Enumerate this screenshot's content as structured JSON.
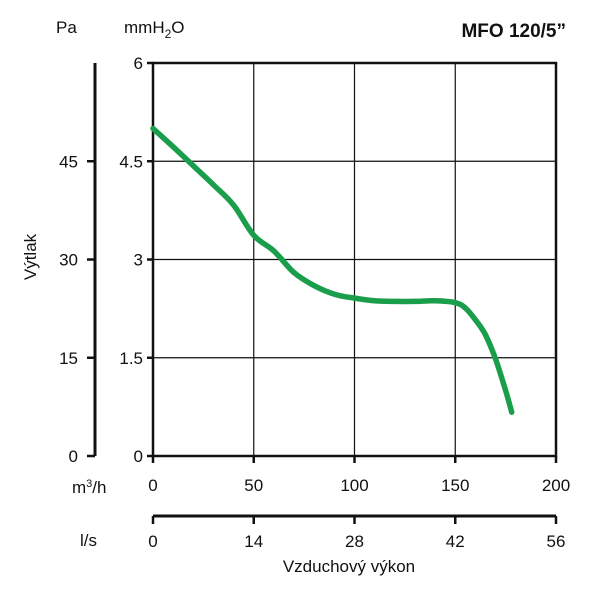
{
  "chart_data": {
    "type": "line",
    "title": "MFO 120/5”",
    "ylabel": "Výtlak",
    "xlabel": "Vzduchový výkon",
    "left_axis": {
      "unit": "Pa",
      "ticks": [
        "0",
        "15",
        "30",
        "45"
      ]
    },
    "y": {
      "unit_prefix": "mmH",
      "unit_sub": "2",
      "unit_suffix": "O",
      "ylim": [
        0,
        6
      ],
      "ticks": [
        "0",
        "1.5",
        "3",
        "4.5",
        "6"
      ]
    },
    "x": {
      "unit_base": "m",
      "unit_sup": "3",
      "unit_rest": "/h",
      "xlim": [
        0,
        200
      ],
      "ticks": [
        "0",
        "50",
        "100",
        "150",
        "200"
      ]
    },
    "x2": {
      "unit": "l/s",
      "ticks": [
        "0",
        "14",
        "28",
        "42",
        "56"
      ]
    },
    "grid": true,
    "color": "#1a9e4b",
    "series": [
      {
        "points": [
          [
            0,
            5.0
          ],
          [
            10,
            4.72
          ],
          [
            20,
            4.43
          ],
          [
            30,
            4.14
          ],
          [
            40,
            3.83
          ],
          [
            50,
            3.37
          ],
          [
            60,
            3.13
          ],
          [
            70,
            2.8
          ],
          [
            80,
            2.6
          ],
          [
            90,
            2.47
          ],
          [
            100,
            2.41
          ],
          [
            110,
            2.37
          ],
          [
            120,
            2.36
          ],
          [
            130,
            2.36
          ],
          [
            140,
            2.37
          ],
          [
            150,
            2.34
          ],
          [
            155,
            2.26
          ],
          [
            160,
            2.08
          ],
          [
            165,
            1.85
          ],
          [
            170,
            1.48
          ],
          [
            175,
            1.0
          ],
          [
            178,
            0.67
          ]
        ]
      }
    ]
  }
}
